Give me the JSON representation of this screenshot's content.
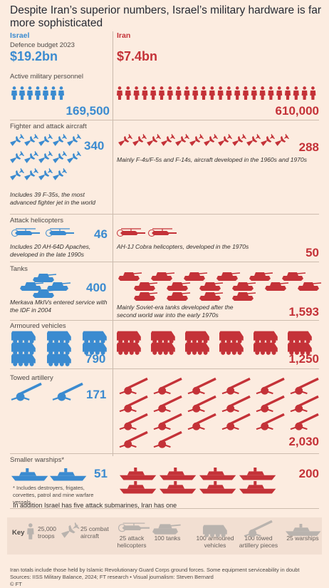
{
  "title": "Despite Iran’s superior numbers, Israel’s military hardware is far more sophisticated",
  "colors": {
    "israel": "#3b8bd0",
    "iran": "#c43238",
    "key": "#b9b3ae",
    "background": "#fcece0"
  },
  "columns": {
    "israel": "Israel",
    "iran": "Iran"
  },
  "sections": {
    "budget": {
      "label": "Defence budget 2023",
      "israel": "$19.2bn",
      "iran": "$7.4bn"
    },
    "personnel": {
      "label": "Active military personnel",
      "israel": "169,500",
      "iran": "610,000"
    },
    "aircraft": {
      "label": "Fighter and attack aircraft",
      "israel": "340",
      "iran": "288",
      "israel_note": "Includes 39 F-35s, the most advanced fighter jet in the world",
      "iran_note": "Mainly F-4s/F-5s and F-14s, aircraft developed in the 1960s and 1970s"
    },
    "helicopters": {
      "label": "Attack helicopters",
      "israel": "46",
      "iran": "50",
      "israel_note": "Includes 20 AH-64D Apaches, developed in the late 1990s",
      "iran_note": "AH-1J Cobra helicopters, developed in the 1970s"
    },
    "tanks": {
      "label": "Tanks",
      "israel": "400",
      "iran": "1,593",
      "israel_note": "Merkava MkIVs entered service with the IDF in 2004",
      "iran_note": "Mainly Soviet-era tanks developed after the second world war into the early 1970s"
    },
    "vehicles": {
      "label": "Armoured vehicles",
      "israel": "790",
      "iran": "1,250"
    },
    "artillery": {
      "label": "Towed artillery",
      "israel": "171",
      "iran": "2,030"
    },
    "warships": {
      "label": "Smaller warships*",
      "israel": "51",
      "iran": "200",
      "footnote": "* Includes destroyers, frigates, corvettes, patrol and mine warfare vessels"
    }
  },
  "submarines_note": "In addition Israel has five attack submarines, Iran has one",
  "key": {
    "label": "Key",
    "items": [
      "25,000 troops",
      "25 combat aircraft",
      "25 attack helicopters",
      "100 tanks",
      "100 armoured vehicles",
      "100 towed artillery pieces",
      "25 warships"
    ]
  },
  "footer": {
    "note": "Iran totals include those held by Islamic Revolutionary Guard Corps ground forces. Some equipment serviceability in doubt",
    "sources": "Sources: IISS Military Balance, 2024; FT research • Visual journalism: Steven Bernard",
    "credit": "© FT"
  },
  "chart_data": {
    "type": "table",
    "title": "Despite Iran’s superior numbers, Israel’s military hardware is far more sophisticated",
    "categories": [
      "Defence budget 2023 ($bn)",
      "Active military personnel",
      "Fighter and attack aircraft",
      "Attack helicopters",
      "Tanks",
      "Armoured vehicles",
      "Towed artillery",
      "Smaller warships"
    ],
    "series": [
      {
        "name": "Israel",
        "values": [
          19.2,
          169500,
          340,
          46,
          400,
          790,
          171,
          51
        ]
      },
      {
        "name": "Iran",
        "values": [
          7.4,
          610000,
          288,
          50,
          1593,
          1250,
          2030,
          200
        ]
      }
    ],
    "icon_counts": {
      "personnel": {
        "unit": 25000,
        "israel": 7,
        "iran": 24
      },
      "aircraft": {
        "unit": 25,
        "israel": 14,
        "iran": 12
      },
      "helicopters": {
        "unit": 25,
        "israel": 2,
        "iran": 2
      },
      "tanks": {
        "unit": 100,
        "israel": 4,
        "iran": 16
      },
      "vehicles": {
        "unit": 100,
        "israel": 8,
        "iran": 12
      },
      "artillery": {
        "unit": 100,
        "israel": 2,
        "iran": 20
      },
      "warships": {
        "unit": 25,
        "israel": 2,
        "iran": 8
      }
    }
  }
}
